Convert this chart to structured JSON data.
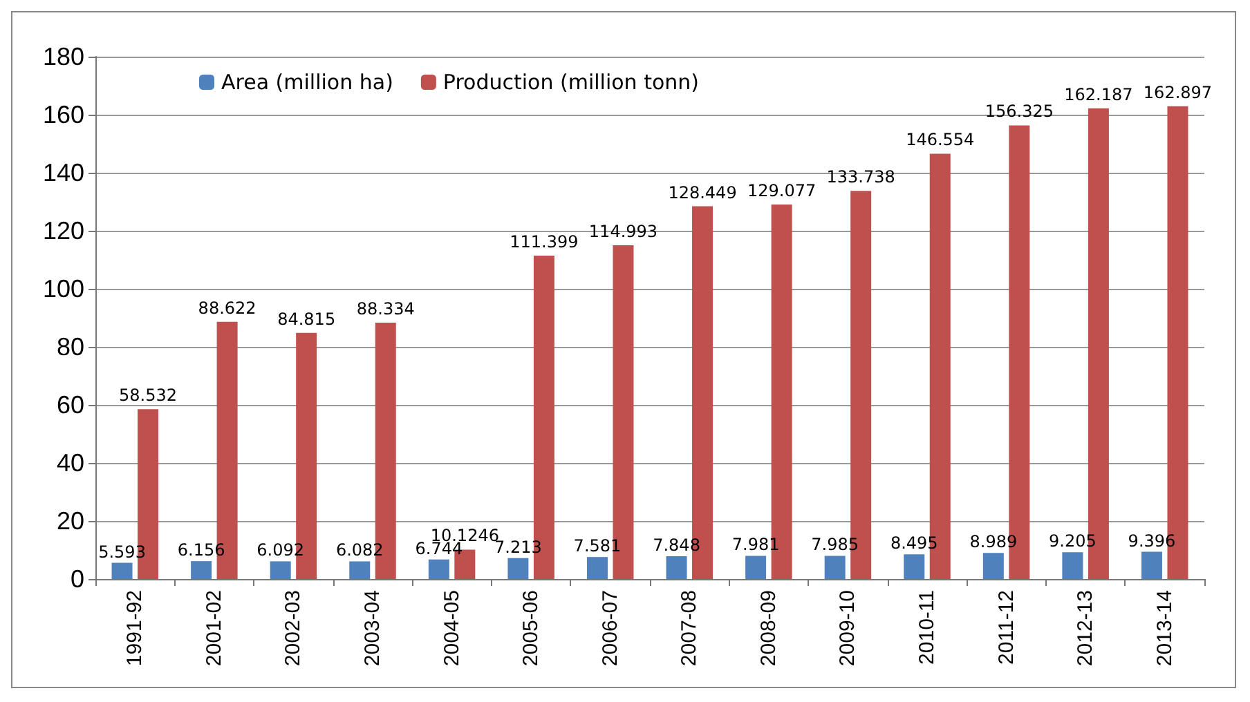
{
  "chart_data": {
    "type": "bar",
    "categories": [
      "1991-92",
      "2001-02",
      "2002-03",
      "2003-04",
      "2004-05",
      "2005-06",
      "2006-07",
      "2007-08",
      "2008-09",
      "2009-10",
      "2010-11",
      "2011-12",
      "2012-13",
      "2013-14"
    ],
    "series": [
      {
        "name": "Area (million ha)",
        "color": "#4f81bd",
        "values": [
          5.593,
          6.156,
          6.092,
          6.082,
          6.744,
          7.213,
          7.581,
          7.848,
          7.981,
          7.985,
          8.495,
          8.989,
          9.205,
          9.396
        ]
      },
      {
        "name": "Production (million tonn)",
        "color": "#c0504d",
        "values": [
          58.532,
          88.622,
          84.815,
          88.334,
          10.1246,
          111.399,
          114.993,
          128.449,
          129.077,
          133.738,
          146.554,
          156.325,
          162.187,
          162.897
        ]
      }
    ],
    "ylim": [
      0,
      180
    ],
    "yticks": [
      0,
      20,
      40,
      60,
      80,
      100,
      120,
      140,
      160,
      180
    ],
    "grid": "y",
    "legend": "top left",
    "data_labels": true
  }
}
